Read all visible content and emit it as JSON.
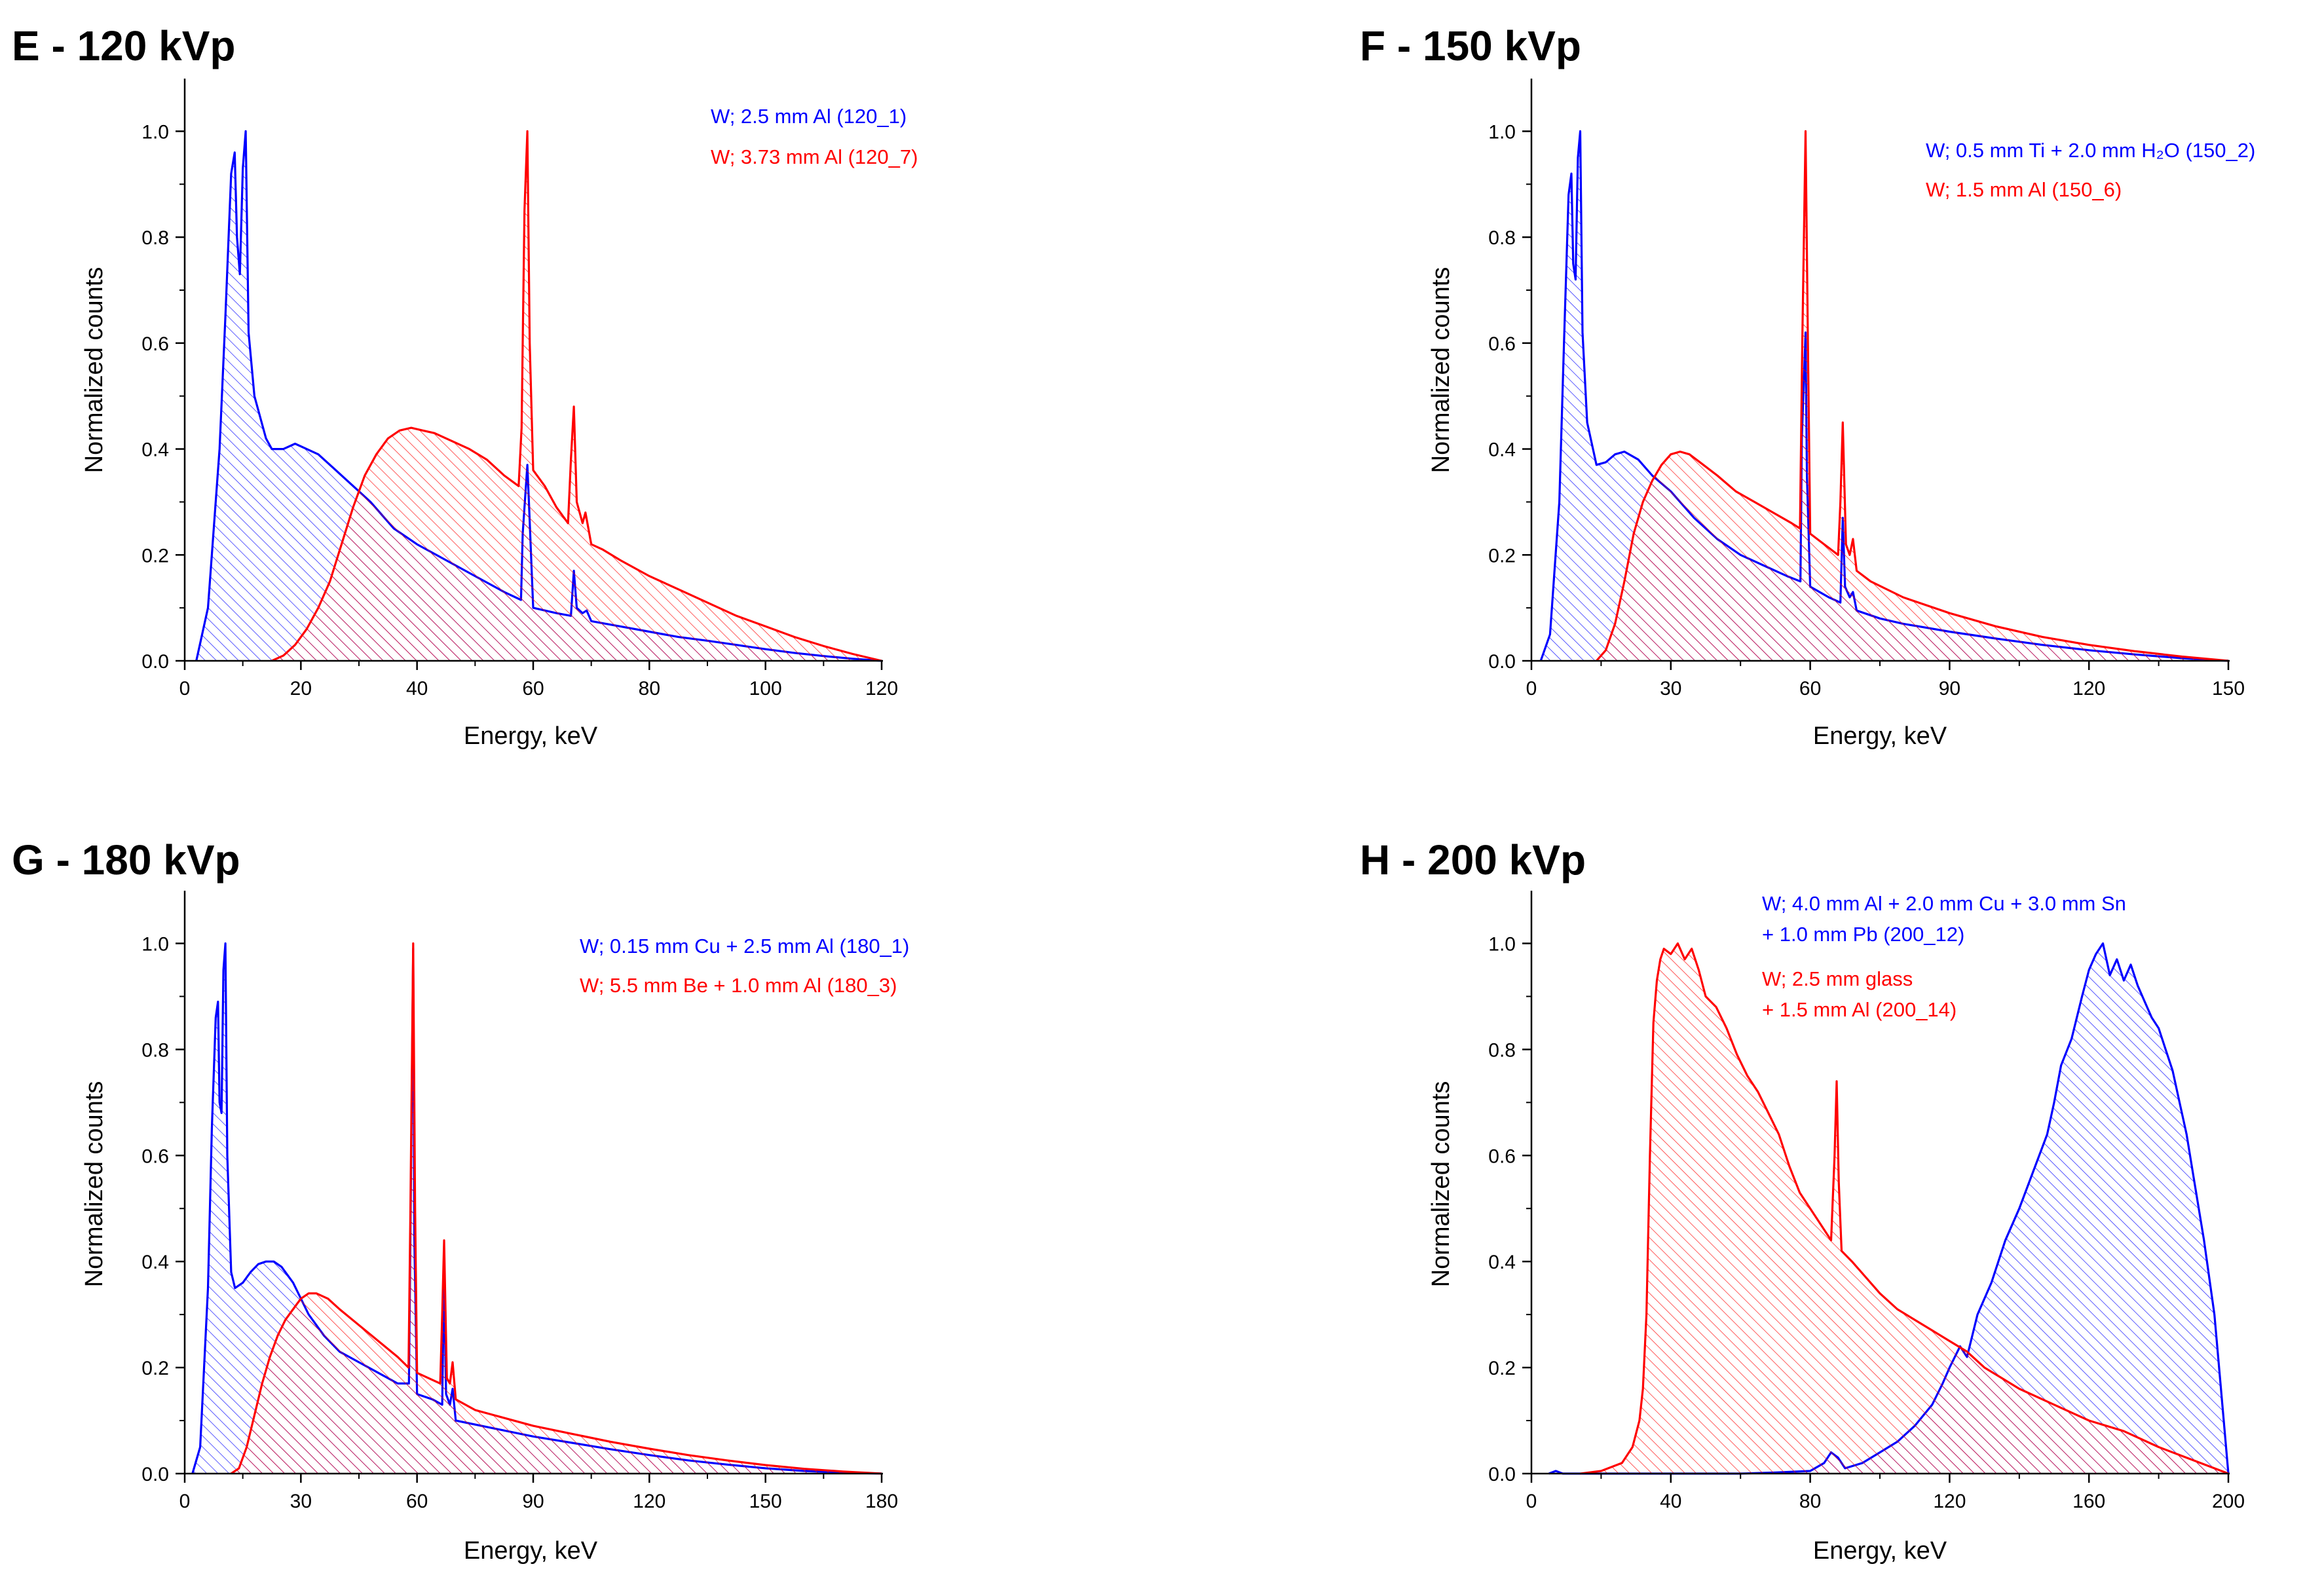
{
  "chart_data": [
    {
      "id": "E",
      "type": "area",
      "title": "E - 120 kVp",
      "xlabel": "Energy, keV",
      "ylabel": "Normalized counts",
      "xlim": [
        0,
        120
      ],
      "ylim": [
        0,
        1.05
      ],
      "xticks": [
        0,
        20,
        40,
        60,
        80,
        100,
        120
      ],
      "yticks": [
        0.0,
        0.2,
        0.4,
        0.6,
        0.8,
        1.0
      ],
      "ytick_labels": [
        "0.0",
        "0.2",
        "0.4",
        "0.6",
        "0.8",
        "1.0"
      ],
      "legend_position": "top-center",
      "series": [
        {
          "name": "W; 2.5 mm Al (120_1)",
          "legend_lines": [
            "W; 2.5 mm Al (120_1)"
          ],
          "color": "#0000ff",
          "x": [
            2,
            4,
            6,
            7,
            8,
            8.6,
            9,
            9.5,
            10,
            10.5,
            11,
            12,
            14,
            15,
            17,
            19,
            21,
            23,
            25,
            28,
            32,
            36,
            40,
            45,
            50,
            55,
            57.9,
            58.2,
            59,
            59.3,
            60,
            64,
            66.5,
            67,
            67.5,
            68.5,
            69.2,
            70,
            75,
            80,
            85,
            90,
            95,
            100,
            105,
            110,
            115,
            120
          ],
          "y": [
            0.0,
            0.1,
            0.4,
            0.65,
            0.92,
            0.96,
            0.8,
            0.73,
            0.93,
            1.0,
            0.62,
            0.5,
            0.42,
            0.4,
            0.4,
            0.41,
            0.4,
            0.39,
            0.37,
            0.34,
            0.3,
            0.25,
            0.22,
            0.19,
            0.16,
            0.13,
            0.115,
            0.24,
            0.37,
            0.29,
            0.1,
            0.09,
            0.085,
            0.17,
            0.1,
            0.09,
            0.095,
            0.075,
            0.065,
            0.055,
            0.045,
            0.038,
            0.03,
            0.022,
            0.015,
            0.009,
            0.004,
            0.0
          ]
        },
        {
          "name": "W; 3.73 mm Al (120_7)",
          "legend_lines": [
            "W; 3.73 mm Al (120_7)"
          ],
          "color": "#ff0000",
          "x": [
            15,
            17,
            19,
            21,
            23,
            25,
            27,
            29,
            31,
            33,
            35,
            37,
            39,
            41,
            43,
            46,
            49,
            52,
            55,
            57.5,
            58,
            58.5,
            59,
            59.4,
            60,
            62,
            64,
            66,
            66.5,
            67,
            67.5,
            68.5,
            69,
            70,
            72,
            75,
            80,
            85,
            90,
            95,
            100,
            105,
            110,
            115,
            120
          ],
          "y": [
            0.0,
            0.01,
            0.03,
            0.06,
            0.1,
            0.15,
            0.22,
            0.29,
            0.35,
            0.39,
            0.42,
            0.435,
            0.44,
            0.435,
            0.43,
            0.415,
            0.4,
            0.38,
            0.35,
            0.33,
            0.44,
            0.85,
            1.0,
            0.6,
            0.36,
            0.33,
            0.29,
            0.26,
            0.38,
            0.48,
            0.3,
            0.26,
            0.28,
            0.22,
            0.21,
            0.19,
            0.16,
            0.135,
            0.11,
            0.085,
            0.065,
            0.045,
            0.028,
            0.013,
            0.0
          ]
        }
      ]
    },
    {
      "id": "F",
      "type": "area",
      "title": "F - 150 kVp",
      "xlabel": "Energy, keV",
      "ylabel": "Normalized counts",
      "xlim": [
        0,
        150
      ],
      "ylim": [
        0,
        1.05
      ],
      "xticks": [
        0,
        30,
        60,
        90,
        120,
        150
      ],
      "yticks": [
        0.0,
        0.2,
        0.4,
        0.6,
        0.8,
        1.0
      ],
      "ytick_labels": [
        "0.0",
        "0.2",
        "0.4",
        "0.6",
        "0.8",
        "1.0"
      ],
      "legend_position": "top-right",
      "series": [
        {
          "name": "W; 0.5 mm Ti + 2.0 mm H₂O (150_2)",
          "legend_lines": [
            "W; 0.5 mm Ti + 2.0 mm H₂O (150_2)"
          ],
          "color": "#0000ff",
          "x": [
            2,
            4,
            6,
            7,
            8,
            8.6,
            9,
            9.5,
            10,
            10.5,
            11,
            12,
            14,
            16,
            18,
            20,
            23,
            26,
            30,
            35,
            40,
            45,
            50,
            55,
            57.9,
            58.2,
            59,
            59.3,
            60,
            64,
            66.5,
            67,
            67.5,
            68.5,
            69.2,
            70,
            75,
            80,
            90,
            100,
            110,
            120,
            130,
            140,
            150
          ],
          "y": [
            0.0,
            0.05,
            0.3,
            0.6,
            0.88,
            0.92,
            0.75,
            0.72,
            0.95,
            1.0,
            0.62,
            0.45,
            0.37,
            0.375,
            0.39,
            0.395,
            0.38,
            0.35,
            0.32,
            0.27,
            0.23,
            0.2,
            0.18,
            0.16,
            0.15,
            0.42,
            0.62,
            0.35,
            0.14,
            0.12,
            0.11,
            0.27,
            0.14,
            0.12,
            0.13,
            0.095,
            0.08,
            0.07,
            0.055,
            0.042,
            0.03,
            0.02,
            0.012,
            0.005,
            0.0
          ]
        },
        {
          "name": "W; 1.5 mm Al (150_6)",
          "legend_lines": [
            "W; 1.5 mm Al (150_6)"
          ],
          "color": "#ff0000",
          "x": [
            14,
            16,
            18,
            20,
            22,
            24,
            26,
            28,
            30,
            32,
            34,
            37,
            40,
            44,
            48,
            52,
            56,
            57.8,
            58.3,
            59,
            59.5,
            60,
            63,
            66,
            66.5,
            67,
            67.7,
            68.5,
            69.2,
            70,
            73,
            80,
            90,
            100,
            110,
            120,
            130,
            140,
            150
          ],
          "y": [
            0.0,
            0.02,
            0.07,
            0.15,
            0.24,
            0.3,
            0.34,
            0.37,
            0.39,
            0.395,
            0.39,
            0.37,
            0.35,
            0.32,
            0.3,
            0.28,
            0.26,
            0.25,
            0.6,
            1.0,
            0.6,
            0.24,
            0.22,
            0.2,
            0.3,
            0.45,
            0.22,
            0.2,
            0.23,
            0.17,
            0.15,
            0.12,
            0.09,
            0.065,
            0.045,
            0.03,
            0.018,
            0.008,
            0.0
          ]
        }
      ]
    },
    {
      "id": "G",
      "type": "area",
      "title": "G - 180 kVp",
      "xlabel": "Energy, keV",
      "ylabel": "Normalized counts",
      "xlim": [
        0,
        180
      ],
      "ylim": [
        0,
        1.05
      ],
      "xticks": [
        0,
        30,
        60,
        90,
        120,
        150,
        180
      ],
      "yticks": [
        0.0,
        0.2,
        0.4,
        0.6,
        0.8,
        1.0
      ],
      "ytick_labels": [
        "0.0",
        "0.2",
        "0.4",
        "0.6",
        "0.8",
        "1.0"
      ],
      "legend_position": "top-center",
      "series": [
        {
          "name": "W; 0.15 mm Cu + 2.5 mm Al (180_1)",
          "legend_lines": [
            "W; 0.15 mm Cu + 2.5 mm Al (180_1)"
          ],
          "color": "#0000ff",
          "x": [
            2,
            4,
            6,
            7,
            8,
            8.6,
            9,
            9.5,
            10,
            10.5,
            11,
            12,
            13,
            15,
            17,
            19,
            21,
            23,
            25,
            28,
            32,
            36,
            40,
            45,
            50,
            55,
            57.9,
            58.3,
            59,
            59.3,
            60,
            64,
            66.5,
            67,
            67.5,
            68.5,
            69.2,
            70,
            80,
            90,
            100,
            110,
            120,
            130,
            140,
            150,
            160,
            170,
            180
          ],
          "y": [
            0.0,
            0.05,
            0.35,
            0.65,
            0.86,
            0.89,
            0.7,
            0.68,
            0.95,
            1.0,
            0.6,
            0.38,
            0.35,
            0.36,
            0.38,
            0.395,
            0.4,
            0.4,
            0.39,
            0.36,
            0.3,
            0.26,
            0.23,
            0.21,
            0.19,
            0.17,
            0.17,
            0.45,
            0.99,
            0.45,
            0.15,
            0.14,
            0.13,
            0.38,
            0.15,
            0.13,
            0.16,
            0.1,
            0.085,
            0.07,
            0.058,
            0.046,
            0.035,
            0.025,
            0.017,
            0.01,
            0.005,
            0.002,
            0.0
          ]
        },
        {
          "name": "W; 5.5 mm Be + 1.0 mm Al (180_3)",
          "legend_lines": [
            "W; 5.5 mm Be + 1.0 mm Al (180_3)"
          ],
          "color": "#ff0000",
          "x": [
            12,
            14,
            16,
            18,
            20,
            22,
            24,
            26,
            28,
            30,
            32,
            34,
            37,
            40,
            45,
            50,
            55,
            57.8,
            58.3,
            59,
            59.5,
            60,
            63,
            66,
            66.5,
            67,
            67.7,
            68.5,
            69.2,
            70,
            75,
            80,
            90,
            100,
            110,
            120,
            130,
            140,
            150,
            160,
            170,
            180
          ],
          "y": [
            0.0,
            0.01,
            0.05,
            0.11,
            0.17,
            0.22,
            0.26,
            0.29,
            0.31,
            0.33,
            0.34,
            0.34,
            0.33,
            0.31,
            0.28,
            0.25,
            0.22,
            0.2,
            0.5,
            1.0,
            0.5,
            0.19,
            0.18,
            0.17,
            0.3,
            0.44,
            0.18,
            0.17,
            0.21,
            0.14,
            0.12,
            0.11,
            0.09,
            0.075,
            0.06,
            0.047,
            0.035,
            0.025,
            0.016,
            0.009,
            0.004,
            0.0
          ]
        }
      ]
    },
    {
      "id": "H",
      "type": "area",
      "title": "H - 200 kVp",
      "xlabel": "Energy, keV",
      "ylabel": "Normalized counts",
      "xlim": [
        0,
        200
      ],
      "ylim": [
        0,
        1.05
      ],
      "xticks": [
        0,
        40,
        80,
        120,
        160,
        200
      ],
      "yticks": [
        0.0,
        0.2,
        0.4,
        0.6,
        0.8,
        1.0
      ],
      "ytick_labels": [
        "0.0",
        "0.2",
        "0.4",
        "0.6",
        "0.8",
        "1.0"
      ],
      "legend_position": "top-center",
      "series": [
        {
          "name": "W; 4.0 mm Al + 2.0 mm Cu + 3.0 mm Sn + 1.0 mm Pb (200_12)",
          "legend_lines": [
            "W; 4.0 mm Al + 2.0 mm Cu + 3.0 mm Sn",
            "+ 1.0 mm Pb (200_12)"
          ],
          "color": "#0000ff",
          "x": [
            5,
            7,
            9,
            60,
            70,
            80,
            84,
            86,
            88,
            90,
            95,
            100,
            105,
            110,
            115,
            118,
            120,
            123,
            125,
            128,
            132,
            136,
            140,
            144,
            148,
            150,
            152,
            155,
            158,
            160,
            162,
            164,
            166,
            168,
            170,
            172,
            174,
            176,
            178,
            180,
            182,
            184,
            186,
            188,
            190,
            193,
            196,
            198,
            200
          ],
          "y": [
            0.0,
            0.005,
            0.0,
            0.0,
            0.002,
            0.005,
            0.02,
            0.04,
            0.03,
            0.01,
            0.02,
            0.04,
            0.06,
            0.09,
            0.13,
            0.17,
            0.2,
            0.24,
            0.22,
            0.3,
            0.36,
            0.44,
            0.5,
            0.57,
            0.64,
            0.7,
            0.77,
            0.82,
            0.9,
            0.95,
            0.98,
            1.0,
            0.94,
            0.97,
            0.93,
            0.96,
            0.92,
            0.89,
            0.86,
            0.84,
            0.8,
            0.76,
            0.7,
            0.64,
            0.56,
            0.44,
            0.3,
            0.15,
            0.0
          ]
        },
        {
          "name": "W; 2.5 mm glass + 1.5 mm Al (200_14)",
          "legend_lines": [
            "W; 2.5 mm glass",
            "+ 1.5 mm Al (200_14)"
          ],
          "color": "#ff0000",
          "x": [
            14,
            20,
            26,
            29,
            31,
            32,
            33,
            34,
            35,
            36,
            37,
            38,
            40,
            42,
            44,
            46,
            48,
            50,
            53,
            56,
            59,
            62,
            65,
            68,
            71,
            74,
            77,
            80,
            83,
            86,
            87,
            87.6,
            88.2,
            89,
            92,
            96,
            100,
            105,
            110,
            115,
            120,
            125,
            130,
            135,
            140,
            150,
            160,
            170,
            180,
            190,
            200
          ],
          "y": [
            0.0,
            0.005,
            0.02,
            0.05,
            0.1,
            0.16,
            0.3,
            0.6,
            0.85,
            0.93,
            0.97,
            0.99,
            0.98,
            1.0,
            0.97,
            0.99,
            0.95,
            0.9,
            0.88,
            0.84,
            0.79,
            0.75,
            0.72,
            0.68,
            0.64,
            0.58,
            0.53,
            0.5,
            0.47,
            0.44,
            0.6,
            0.74,
            0.55,
            0.42,
            0.4,
            0.37,
            0.34,
            0.31,
            0.29,
            0.27,
            0.25,
            0.23,
            0.2,
            0.18,
            0.16,
            0.13,
            0.1,
            0.08,
            0.05,
            0.025,
            0.0
          ]
        }
      ]
    }
  ]
}
